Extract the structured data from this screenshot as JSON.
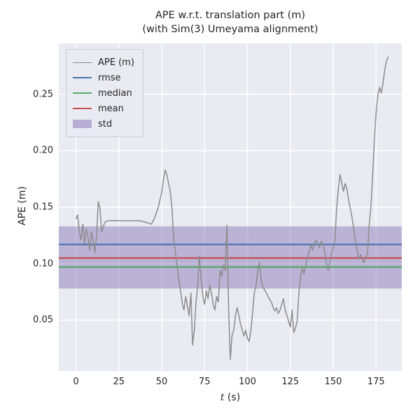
{
  "chart_data": {
    "type": "line",
    "title": "APE w.r.t. translation part (m)",
    "subtitle": "(with Sim(3) Umeyama alignment)",
    "xlabel_var": "t",
    "xlabel_unit": " (s)",
    "ylabel": "APE (m)",
    "xlim": [
      -10,
      190
    ],
    "ylim": [
      0.005,
      0.295
    ],
    "xticks": [
      0,
      25,
      50,
      75,
      100,
      125,
      150,
      175
    ],
    "xtick_labels": [
      "0",
      "25",
      "50",
      "75",
      "100",
      "125",
      "150",
      "175"
    ],
    "yticks": [
      0.05,
      0.1,
      0.15,
      0.2,
      0.25
    ],
    "ytick_labels": [
      "0.05",
      "0.10",
      "0.15",
      "0.20",
      "0.25"
    ],
    "grid": true,
    "legend_position": "upper-left",
    "legend": [
      {
        "label": "APE (m)",
        "type": "line",
        "color": "#8c8c8c"
      },
      {
        "label": "rmse",
        "type": "line",
        "color": "#4c72b0"
      },
      {
        "label": "median",
        "type": "line",
        "color": "#55a868"
      },
      {
        "label": "mean",
        "type": "line",
        "color": "#c44e52"
      },
      {
        "label": "std",
        "type": "band",
        "color": "#8172b2"
      }
    ],
    "stats": {
      "rmse": 0.117,
      "median": 0.097,
      "mean": 0.105,
      "std_low": 0.078,
      "std_high": 0.133
    },
    "colors": {
      "ape_line": "#8c8c8c",
      "rmse": "#4c72b0",
      "median": "#55a868",
      "mean": "#c44e52",
      "std_fill": "#8172b2",
      "axes_bg": "#eaeaf2",
      "grid": "#ffffff"
    },
    "series": [
      {
        "name": "APE (m)",
        "color": "#8c8c8c",
        "points": [
          [
            0,
            0.14
          ],
          [
            1,
            0.143
          ],
          [
            2,
            0.128
          ],
          [
            3,
            0.121
          ],
          [
            4,
            0.135
          ],
          [
            5,
            0.118
          ],
          [
            6,
            0.131
          ],
          [
            7,
            0.124
          ],
          [
            8,
            0.112
          ],
          [
            9,
            0.128
          ],
          [
            10,
            0.121
          ],
          [
            11,
            0.11
          ],
          [
            12,
            0.124
          ],
          [
            13,
            0.155
          ],
          [
            14,
            0.149
          ],
          [
            15,
            0.128
          ],
          [
            16,
            0.133
          ],
          [
            17,
            0.137
          ],
          [
            19,
            0.138
          ],
          [
            22,
            0.138
          ],
          [
            25,
            0.138
          ],
          [
            28,
            0.138
          ],
          [
            31,
            0.138
          ],
          [
            34,
            0.138
          ],
          [
            37,
            0.138
          ],
          [
            40,
            0.137
          ],
          [
            42,
            0.136
          ],
          [
            44,
            0.135
          ],
          [
            46,
            0.141
          ],
          [
            48,
            0.15
          ],
          [
            50,
            0.163
          ],
          [
            51,
            0.174
          ],
          [
            52,
            0.183
          ],
          [
            53,
            0.179
          ],
          [
            54,
            0.171
          ],
          [
            55,
            0.164
          ],
          [
            56,
            0.149
          ],
          [
            57,
            0.121
          ],
          [
            58,
            0.11
          ],
          [
            59,
            0.099
          ],
          [
            60,
            0.086
          ],
          [
            61,
            0.076
          ],
          [
            62,
            0.065
          ],
          [
            63,
            0.059
          ],
          [
            64,
            0.071
          ],
          [
            65,
            0.062
          ],
          [
            66,
            0.054
          ],
          [
            67,
            0.074
          ],
          [
            68,
            0.028
          ],
          [
            69,
            0.041
          ],
          [
            70,
            0.066
          ],
          [
            71,
            0.081
          ],
          [
            72,
            0.107
          ],
          [
            73,
            0.086
          ],
          [
            74,
            0.071
          ],
          [
            75,
            0.064
          ],
          [
            76,
            0.076
          ],
          [
            77,
            0.069
          ],
          [
            78,
            0.081
          ],
          [
            79,
            0.074
          ],
          [
            80,
            0.064
          ],
          [
            81,
            0.059
          ],
          [
            82,
            0.071
          ],
          [
            83,
            0.066
          ],
          [
            84,
            0.094
          ],
          [
            85,
            0.089
          ],
          [
            86,
            0.099
          ],
          [
            87,
            0.094
          ],
          [
            88,
            0.134
          ],
          [
            89,
            0.061
          ],
          [
            90,
            0.015
          ],
          [
            91,
            0.036
          ],
          [
            92,
            0.041
          ],
          [
            93,
            0.054
          ],
          [
            94,
            0.061
          ],
          [
            95,
            0.054
          ],
          [
            96,
            0.046
          ],
          [
            97,
            0.041
          ],
          [
            98,
            0.036
          ],
          [
            99,
            0.041
          ],
          [
            100,
            0.034
          ],
          [
            101,
            0.031
          ],
          [
            102,
            0.041
          ],
          [
            103,
            0.056
          ],
          [
            104,
            0.074
          ],
          [
            105,
            0.081
          ],
          [
            106,
            0.094
          ],
          [
            107,
            0.101
          ],
          [
            108,
            0.086
          ],
          [
            109,
            0.079
          ],
          [
            110,
            0.077
          ],
          [
            111,
            0.074
          ],
          [
            112,
            0.071
          ],
          [
            113,
            0.068
          ],
          [
            114,
            0.066
          ],
          [
            115,
            0.061
          ],
          [
            116,
            0.058
          ],
          [
            117,
            0.061
          ],
          [
            118,
            0.056
          ],
          [
            119,
            0.059
          ],
          [
            120,
            0.064
          ],
          [
            121,
            0.069
          ],
          [
            122,
            0.059
          ],
          [
            123,
            0.054
          ],
          [
            124,
            0.049
          ],
          [
            125,
            0.044
          ],
          [
            126,
            0.059
          ],
          [
            127,
            0.039
          ],
          [
            128,
            0.043
          ],
          [
            129,
            0.049
          ],
          [
            130,
            0.074
          ],
          [
            131,
            0.089
          ],
          [
            132,
            0.096
          ],
          [
            133,
            0.091
          ],
          [
            134,
            0.099
          ],
          [
            135,
            0.106
          ],
          [
            136,
            0.111
          ],
          [
            137,
            0.116
          ],
          [
            138,
            0.112
          ],
          [
            139,
            0.118
          ],
          [
            140,
            0.121
          ],
          [
            141,
            0.118
          ],
          [
            142,
            0.114
          ],
          [
            143,
            0.12
          ],
          [
            144,
            0.117
          ],
          [
            145,
            0.111
          ],
          [
            146,
            0.101
          ],
          [
            147,
            0.094
          ],
          [
            148,
            0.101
          ],
          [
            149,
            0.109
          ],
          [
            150,
            0.114
          ],
          [
            151,
            0.121
          ],
          [
            152,
            0.149
          ],
          [
            153,
            0.166
          ],
          [
            154,
            0.179
          ],
          [
            155,
            0.171
          ],
          [
            156,
            0.164
          ],
          [
            157,
            0.171
          ],
          [
            158,
            0.166
          ],
          [
            159,
            0.156
          ],
          [
            160,
            0.149
          ],
          [
            161,
            0.141
          ],
          [
            162,
            0.131
          ],
          [
            163,
            0.119
          ],
          [
            164,
            0.111
          ],
          [
            165,
            0.104
          ],
          [
            166,
            0.108
          ],
          [
            167,
            0.104
          ],
          [
            168,
            0.101
          ],
          [
            169,
            0.106
          ],
          [
            170,
            0.109
          ],
          [
            171,
            0.134
          ],
          [
            172,
            0.151
          ],
          [
            173,
            0.179
          ],
          [
            174,
            0.209
          ],
          [
            175,
            0.234
          ],
          [
            176,
            0.249
          ],
          [
            177,
            0.256
          ],
          [
            178,
            0.251
          ],
          [
            179,
            0.259
          ],
          [
            180,
            0.271
          ],
          [
            181,
            0.279
          ],
          [
            182,
            0.283
          ]
        ]
      }
    ]
  }
}
